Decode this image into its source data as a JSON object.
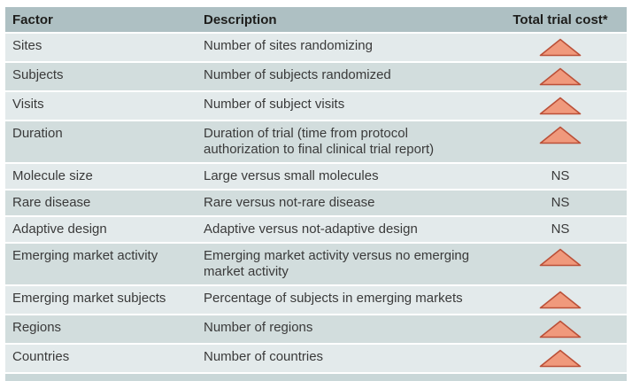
{
  "table": {
    "columns": [
      {
        "label": "Factor"
      },
      {
        "label": "Description"
      },
      {
        "label": "Total trial cost*"
      }
    ],
    "ns_label": "NS",
    "cost_increase_icon": "increase-triangle-icon",
    "rows": [
      {
        "factor": "Sites",
        "description": "Number of sites randomizing",
        "cost": "up"
      },
      {
        "factor": "Subjects",
        "description": "Number of subjects randomized",
        "cost": "up"
      },
      {
        "factor": "Visits",
        "description": "Number of subject visits",
        "cost": "up"
      },
      {
        "factor": "Duration",
        "description": "Duration of trial (time from protocol authorization to final clinical trial report)",
        "cost": "up"
      },
      {
        "factor": "Molecule size",
        "description": "Large versus small molecules",
        "cost": "NS"
      },
      {
        "factor": "Rare disease",
        "description": "Rare versus not-rare disease",
        "cost": "NS"
      },
      {
        "factor": "Adaptive design",
        "description": "Adaptive versus not-adaptive design",
        "cost": "NS"
      },
      {
        "factor": "Emerging market activity",
        "description": "Emerging market activity versus no emerging market activity",
        "cost": "up"
      },
      {
        "factor": "Emerging market subjects",
        "description": "Percentage of subjects in emerging markets",
        "cost": "up"
      },
      {
        "factor": "Regions",
        "description": "Number of regions",
        "cost": "up"
      },
      {
        "factor": "Countries",
        "description": "Number of countries",
        "cost": "up"
      }
    ]
  },
  "colors": {
    "header_bg": "#aec0c3",
    "row_light": "#e3eaeb",
    "row_dark": "#d2dddd",
    "bottom_bar": "#c9d7d8",
    "text": "#3a3a3a",
    "header_text": "#1d1d1b",
    "triangle_fill": "#f0997c",
    "triangle_border": "#bb5038"
  }
}
